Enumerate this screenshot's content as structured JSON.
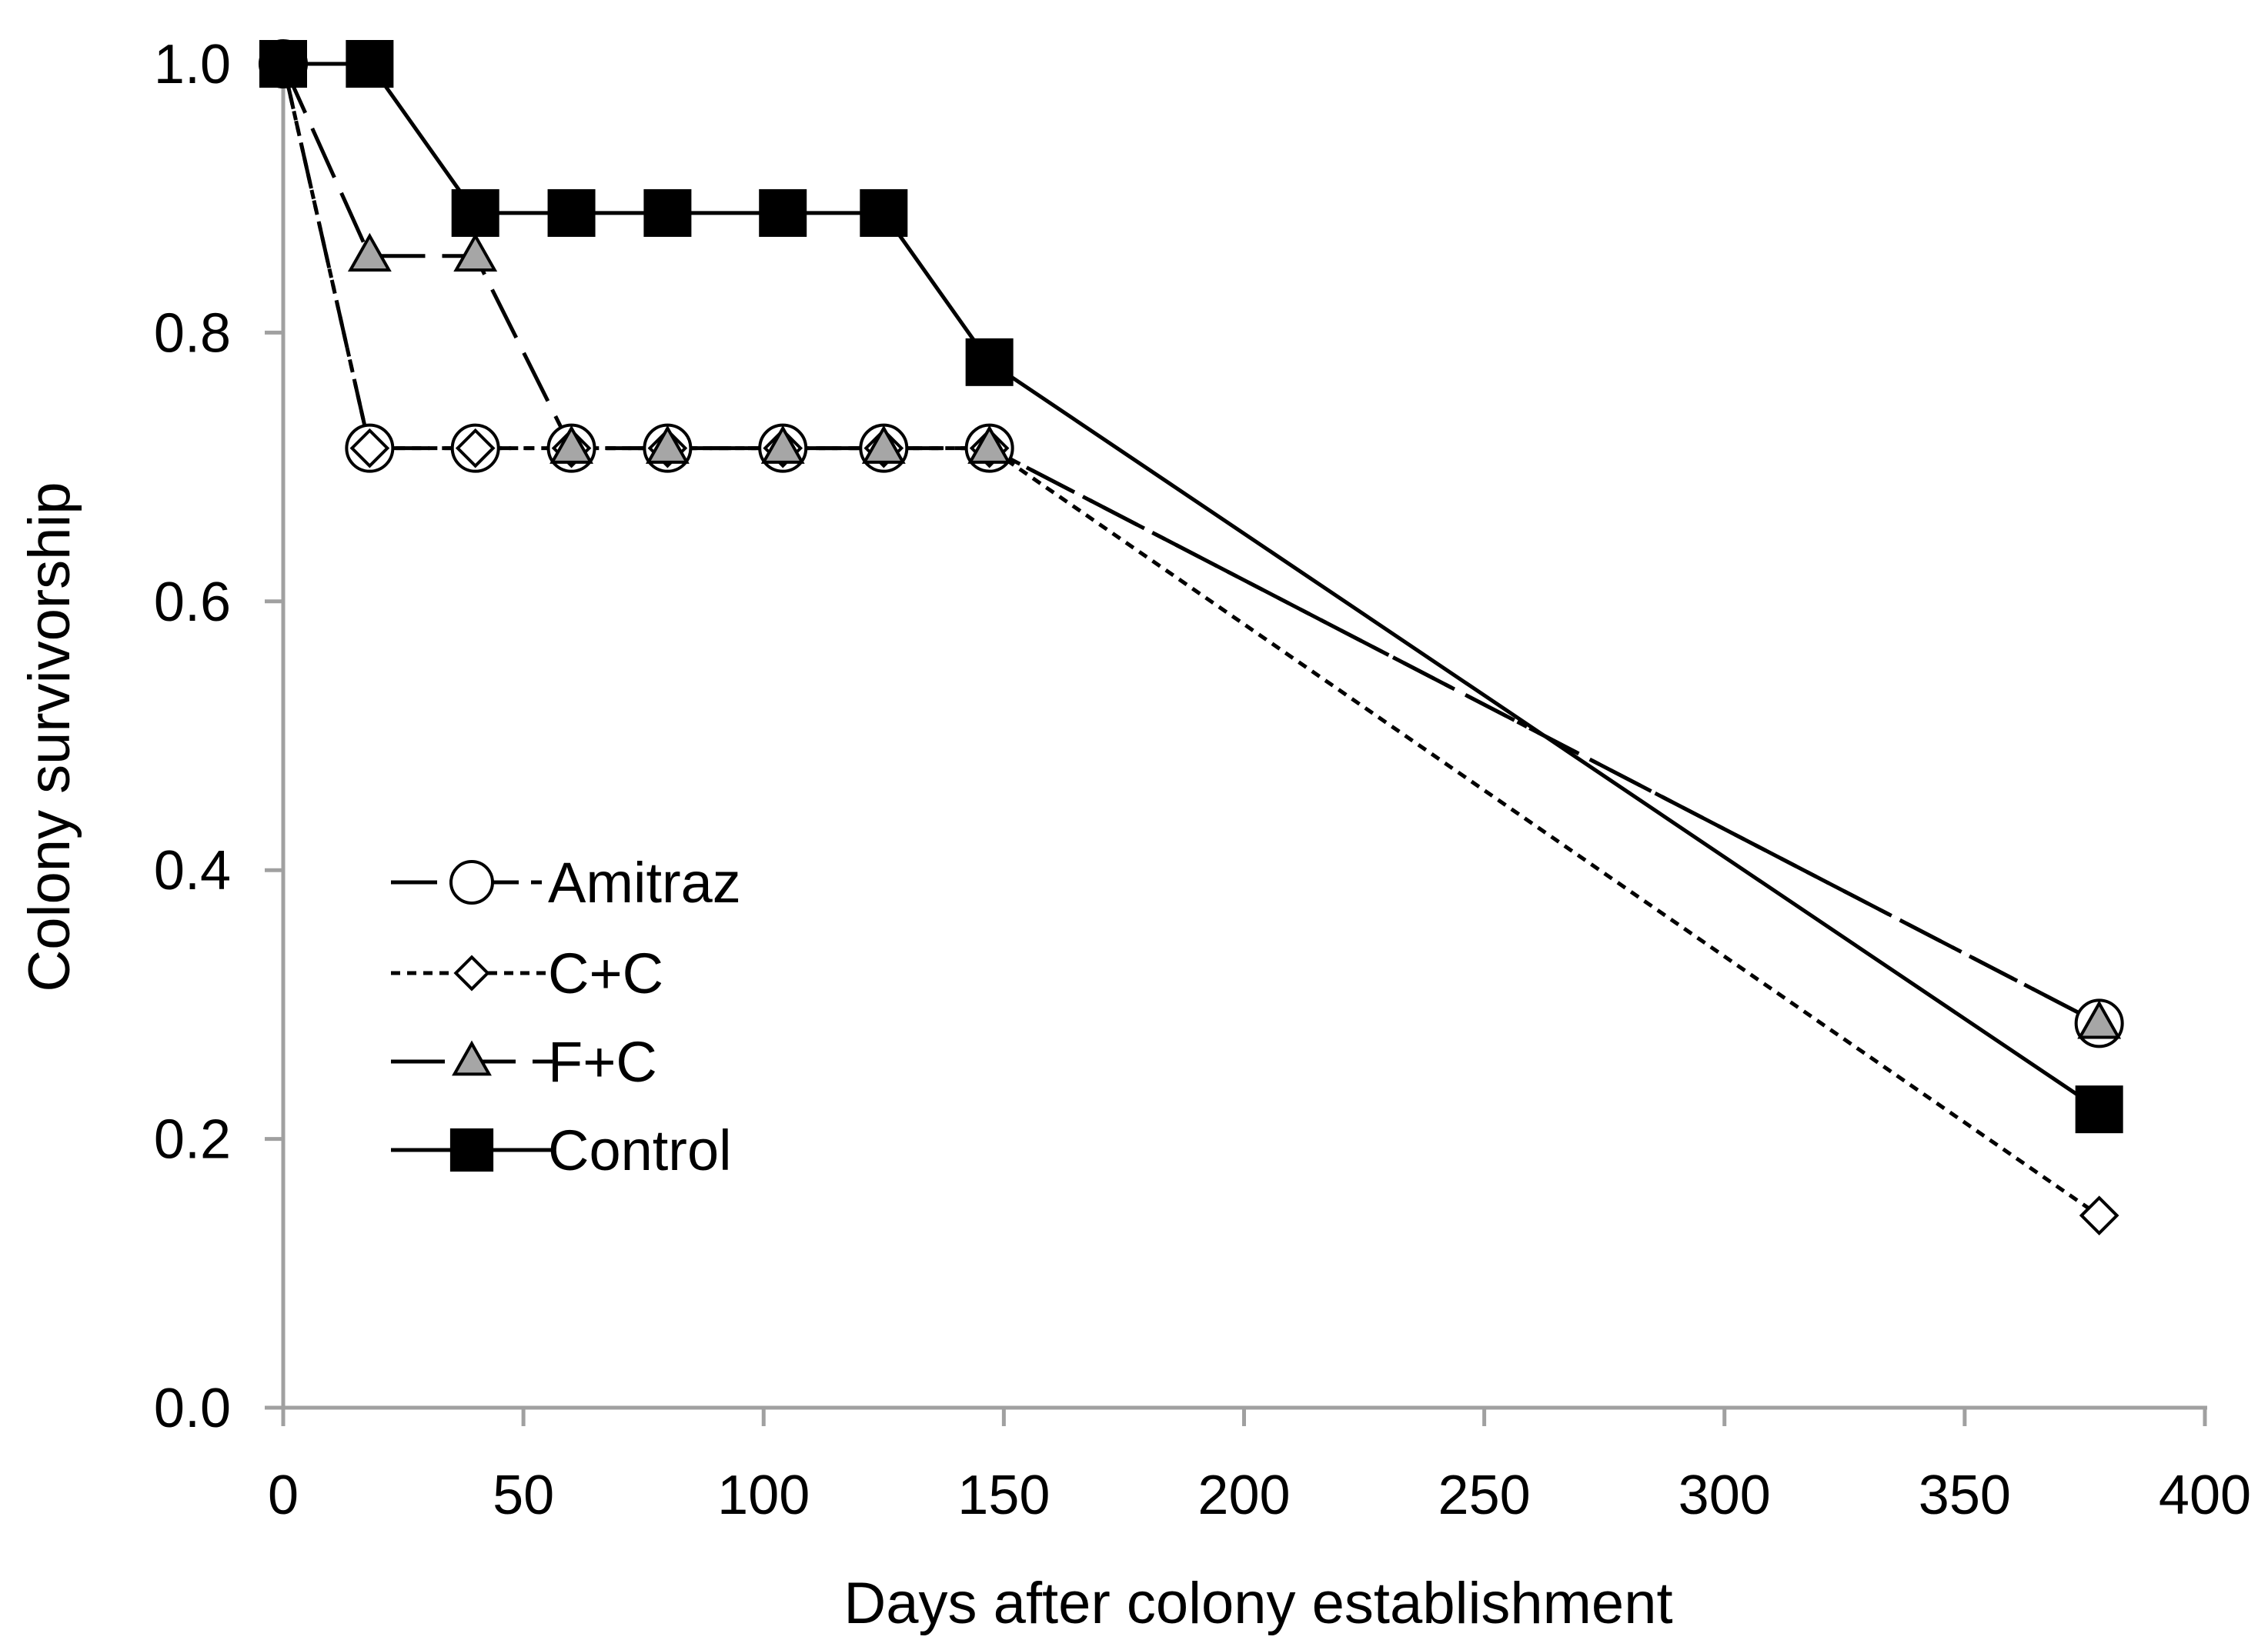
{
  "chart_data": {
    "type": "line",
    "title": "",
    "xlabel": "Days after colony establishment",
    "ylabel": "Colony survivorship",
    "xlim": [
      0,
      400
    ],
    "ylim": [
      0.0,
      1.0
    ],
    "x_ticks": [
      0,
      50,
      100,
      150,
      200,
      250,
      300,
      350,
      400
    ],
    "x_tick_labels": [
      "0",
      "50",
      "100",
      "150",
      "200",
      "250",
      "300",
      "350",
      "400"
    ],
    "y_ticks": [
      0.0,
      0.2,
      0.4,
      0.6,
      0.8,
      1.0
    ],
    "y_tick_labels": [
      "0.0",
      "0.2",
      "0.4",
      "0.6",
      "0.8",
      "1.0"
    ],
    "grid": false,
    "legend_position": "middle-left",
    "series": [
      {
        "name": "Amitraz",
        "marker": "circle",
        "line_style": "dash-dot",
        "marker_fill": "#ffffff",
        "x": [
          0,
          18,
          40,
          60,
          80,
          104,
          125,
          147,
          378
        ],
        "y": [
          1.0,
          0.714,
          0.714,
          0.714,
          0.714,
          0.714,
          0.714,
          0.714,
          0.286
        ]
      },
      {
        "name": "C+C",
        "marker": "diamond",
        "line_style": "dotted",
        "marker_fill": "#ffffff",
        "x": [
          0,
          18,
          40,
          60,
          80,
          104,
          125,
          147,
          378
        ],
        "y": [
          1.0,
          0.714,
          0.714,
          0.714,
          0.714,
          0.714,
          0.714,
          0.714,
          0.143
        ]
      },
      {
        "name": "F+C",
        "marker": "triangle",
        "line_style": "long-dash",
        "marker_fill": "#a6a6a6",
        "x": [
          0,
          18,
          40,
          60,
          80,
          104,
          125,
          147,
          378
        ],
        "y": [
          1.0,
          0.857,
          0.857,
          0.714,
          0.714,
          0.714,
          0.714,
          0.714,
          0.286
        ]
      },
      {
        "name": "Control",
        "marker": "square",
        "line_style": "solid",
        "marker_fill": "#000000",
        "x": [
          0,
          18,
          40,
          60,
          80,
          104,
          125,
          147,
          378
        ],
        "y": [
          1.0,
          1.0,
          0.889,
          0.889,
          0.889,
          0.889,
          0.889,
          0.778,
          0.222
        ]
      }
    ]
  }
}
